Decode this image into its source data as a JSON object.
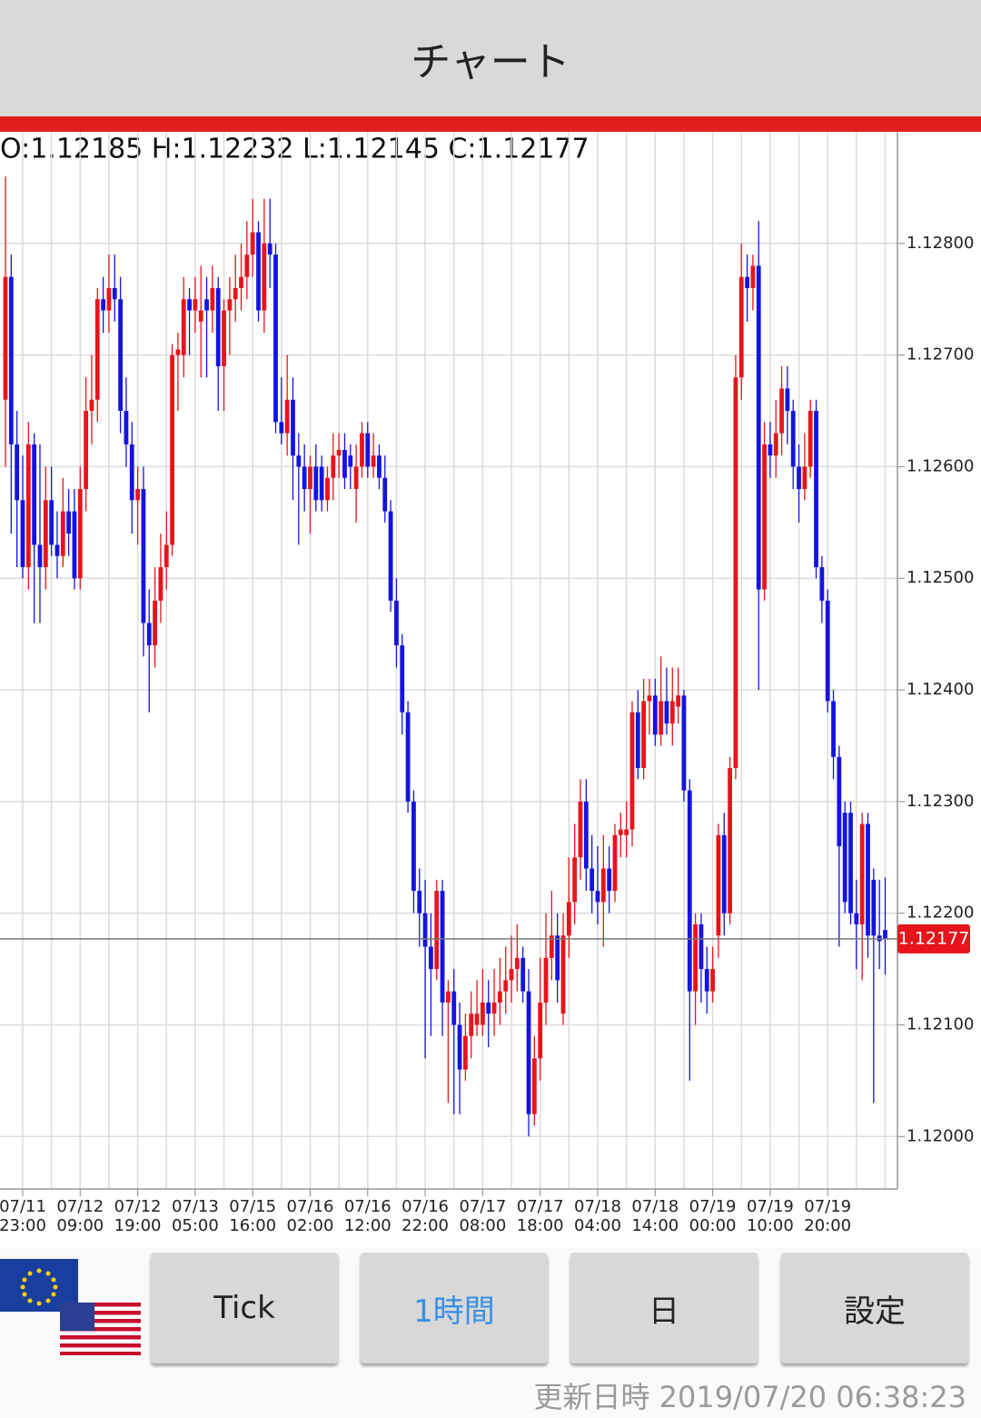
{
  "header": {
    "title": "チャート"
  },
  "chart_data": {
    "type": "candlestick",
    "ohlc_label": "O:1.12185 H:1.12232 L:1.12145 C:1.12177",
    "categories": [
      null,
      null,
      null,
      "07/11\n23:00",
      null,
      null,
      null,
      null,
      null,
      null,
      null,
      null,
      null,
      "07/12\n09:00",
      null,
      null,
      null,
      null,
      null,
      null,
      null,
      null,
      null,
      "07/12\n19:00",
      null,
      null,
      null,
      null,
      null,
      null,
      null,
      null,
      null,
      "07/13\n05:00",
      null,
      null,
      null,
      null,
      null,
      null,
      null,
      null,
      null,
      "07/15\n16:00",
      null,
      null,
      null,
      null,
      null,
      null,
      null,
      null,
      null,
      "07/16\n02:00",
      null,
      null,
      null,
      null,
      null,
      null,
      null,
      null,
      null,
      "07/16\n12:00",
      null,
      null,
      null,
      null,
      null,
      null,
      null,
      null,
      null,
      "07/16\n22:00",
      null,
      null,
      null,
      null,
      null,
      null,
      null,
      null,
      null,
      "07/17\n08:00",
      null,
      null,
      null,
      null,
      null,
      null,
      null,
      null,
      null,
      "07/17\n18:00",
      null,
      null,
      null,
      null,
      null,
      null,
      null,
      null,
      null,
      "07/18\n04:00",
      null,
      null,
      null,
      null,
      null,
      null,
      null,
      null,
      null,
      "07/18\n14:00",
      null,
      null,
      null,
      null,
      null,
      null,
      null,
      null,
      null,
      "07/19\n00:00",
      null,
      null,
      null,
      null,
      null,
      null,
      null,
      null,
      null,
      "07/19\n10:00",
      null,
      null,
      null,
      null,
      null,
      null,
      null,
      null,
      null,
      "07/19\n20:00",
      null,
      null,
      null,
      null,
      null,
      null,
      null,
      null,
      null,
      null
    ],
    "open": [
      1.1266,
      1.1277,
      1.1262,
      1.1257,
      1.1251,
      1.1262,
      1.1253,
      1.1251,
      1.1257,
      1.1253,
      1.1252,
      1.1256,
      1.1256,
      1.125,
      1.1258,
      1.1265,
      1.1266,
      1.1275,
      1.1274,
      1.1276,
      1.1275,
      1.1265,
      1.1262,
      1.1257,
      1.1258,
      1.1246,
      1.1244,
      1.1248,
      1.1251,
      1.1253,
      1.127,
      1.127,
      1.1275,
      1.1274,
      1.1273,
      1.1275,
      1.1274,
      1.1276,
      1.1269,
      1.1274,
      1.1275,
      1.1276,
      1.1277,
      1.1279,
      1.1281,
      1.1274,
      1.128,
      1.1279,
      1.1264,
      1.1263,
      1.1266,
      1.1261,
      1.126,
      1.1258,
      1.126,
      1.126,
      1.1257,
      1.1259,
      1.1261,
      1.12615,
      1.1261,
      1.1258,
      1.126,
      1.1263,
      1.126,
      1.1261,
      1.1259,
      1.1256,
      1.1248,
      1.1244,
      1.1238,
      1.123,
      1.1222,
      1.122,
      1.1217,
      1.1215,
      1.1222,
      1.1212,
      1.1213,
      1.121,
      1.1206,
      1.1209,
      1.121,
      1.121,
      1.1212,
      1.1211,
      1.1212,
      1.1213,
      1.1214,
      1.1215,
      1.1216,
      1.1213,
      1.1202,
      1.1207,
      1.1212,
      1.1216,
      1.1218,
      1.1211,
      1.1218,
      1.1221,
      1.1225,
      1.123,
      1.1224,
      1.1222,
      1.1221,
      1.1224,
      1.1222,
      1.1227,
      1.1227,
      1.12275,
      1.1238,
      1.1233,
      1.1239,
      1.12395,
      1.1236,
      1.1239,
      1.1237,
      1.12385,
      1.12395,
      1.1231,
      1.1213,
      1.1219,
      1.1215,
      1.1213,
      1.1218,
      1.1227,
      1.122,
      1.1233,
      1.1268,
      1.1277,
      1.1276,
      1.1278,
      1.1249,
      1.1262,
      1.1261,
      1.1263,
      1.1267,
      1.1265,
      1.126,
      1.1258,
      1.126,
      1.1265,
      1.1251,
      1.1248,
      1.1239,
      1.1234,
      1.1229,
      1.1229,
      1.122,
      1.1219,
      1.1228,
      1.1223,
      1.1218,
      1.12185
    ],
    "high": [
      1.1286,
      1.1279,
      1.1265,
      1.1261,
      1.1264,
      1.1263,
      1.1262,
      1.126,
      1.126,
      1.1256,
      1.1259,
      1.1258,
      1.1258,
      1.126,
      1.1268,
      1.127,
      1.1276,
      1.1277,
      1.1279,
      1.1279,
      1.1277,
      1.1268,
      1.1264,
      1.126,
      1.126,
      1.1249,
      1.1251,
      1.1254,
      1.1256,
      1.1271,
      1.1272,
      1.1277,
      1.1276,
      1.1277,
      1.1278,
      1.1277,
      1.1278,
      1.1277,
      1.1275,
      1.1277,
      1.1279,
      1.128,
      1.1282,
      1.1284,
      1.1282,
      1.1284,
      1.1284,
      1.128,
      1.1268,
      1.127,
      1.1268,
      1.1263,
      1.1262,
      1.1261,
      1.1262,
      1.1261,
      1.126,
      1.1263,
      1.1263,
      1.1263,
      1.1262,
      1.1262,
      1.1264,
      1.1264,
      1.1263,
      1.1262,
      1.1261,
      1.1257,
      1.125,
      1.1245,
      1.1239,
      1.1231,
      1.1224,
      1.1223,
      1.122,
      1.1223,
      1.1223,
      1.1214,
      1.1215,
      1.1212,
      1.1211,
      1.1213,
      1.1214,
      1.1215,
      1.1214,
      1.1215,
      1.1216,
      1.1217,
      1.1218,
      1.1219,
      1.1217,
      1.1215,
      1.1209,
      1.1216,
      1.122,
      1.1222,
      1.122,
      1.122,
      1.1225,
      1.1228,
      1.1232,
      1.1232,
      1.1227,
      1.1226,
      1.1227,
      1.1226,
      1.1228,
      1.1229,
      1.123,
      1.1239,
      1.124,
      1.1241,
      1.1241,
      1.1241,
      1.1243,
      1.1242,
      1.1242,
      1.1242,
      1.124,
      1.1232,
      1.122,
      1.122,
      1.1217,
      1.1217,
      1.1228,
      1.1229,
      1.1234,
      1.127,
      1.128,
      1.1279,
      1.1279,
      1.1282,
      1.1264,
      1.1264,
      1.1266,
      1.1269,
      1.1269,
      1.1266,
      1.1262,
      1.1263,
      1.1266,
      1.1266,
      1.1252,
      1.1249,
      1.124,
      1.1235,
      1.123,
      1.123,
      1.1223,
      1.1229,
      1.1229,
      1.1224,
      1.1223,
      1.12232
    ],
    "low": [
      1.126,
      1.1254,
      1.1251,
      1.125,
      1.1249,
      1.1246,
      1.1246,
      1.1249,
      1.1252,
      1.125,
      1.1251,
      1.1252,
      1.1249,
      1.1249,
      1.1256,
      1.1262,
      1.1264,
      1.1272,
      1.1272,
      1.1273,
      1.1263,
      1.126,
      1.1254,
      1.1253,
      1.1243,
      1.1238,
      1.1242,
      1.1246,
      1.1249,
      1.1252,
      1.1265,
      1.1268,
      1.127,
      1.1272,
      1.1268,
      1.1268,
      1.1272,
      1.1265,
      1.1265,
      1.127,
      1.1273,
      1.1274,
      1.1275,
      1.1277,
      1.1273,
      1.1272,
      1.1276,
      1.1263,
      1.1262,
      1.1261,
      1.1257,
      1.1253,
      1.1256,
      1.1254,
      1.1256,
      1.1256,
      1.1256,
      1.1257,
      1.1259,
      1.1258,
      1.1258,
      1.1255,
      1.1259,
      1.1259,
      1.1259,
      1.1258,
      1.1255,
      1.1247,
      1.1242,
      1.1236,
      1.1229,
      1.122,
      1.1217,
      1.1207,
      1.1209,
      1.1214,
      1.1209,
      1.1203,
      1.1202,
      1.1202,
      1.1205,
      1.1207,
      1.1209,
      1.1209,
      1.1208,
      1.1209,
      1.121,
      1.1211,
      1.1212,
      1.1213,
      1.1212,
      1.12,
      1.1201,
      1.1205,
      1.121,
      1.1214,
      1.1212,
      1.121,
      1.1216,
      1.1219,
      1.1223,
      1.1222,
      1.122,
      1.1219,
      1.1217,
      1.122,
      1.1221,
      1.1225,
      1.1225,
      1.1226,
      1.1232,
      1.1232,
      1.1236,
      1.1235,
      1.1235,
      1.1236,
      1.1235,
      1.1237,
      1.123,
      1.1205,
      1.121,
      1.1212,
      1.1211,
      1.1212,
      1.1216,
      1.1218,
      1.1219,
      1.1232,
      1.1266,
      1.1273,
      1.1274,
      1.124,
      1.1248,
      1.1259,
      1.1259,
      1.1261,
      1.1262,
      1.1258,
      1.1255,
      1.1257,
      1.1259,
      1.125,
      1.1246,
      1.1238,
      1.1232,
      1.1217,
      1.122,
      1.1219,
      1.1215,
      1.1214,
      1.1216,
      1.1203,
      1.1215,
      1.12145
    ],
    "close": [
      1.1277,
      1.1262,
      1.1257,
      1.1251,
      1.1262,
      1.1253,
      1.1251,
      1.1257,
      1.1253,
      1.1252,
      1.1256,
      1.1254,
      1.125,
      1.1258,
      1.1265,
      1.1266,
      1.1275,
      1.1274,
      1.1276,
      1.1275,
      1.1265,
      1.1262,
      1.1257,
      1.1258,
      1.1246,
      1.1244,
      1.1248,
      1.1251,
      1.1253,
      1.127,
      1.12705,
      1.1275,
      1.1274,
      1.1275,
      1.1274,
      1.1274,
      1.1276,
      1.1269,
      1.1274,
      1.1275,
      1.1276,
      1.1277,
      1.1279,
      1.1281,
      1.1274,
      1.128,
      1.1279,
      1.1264,
      1.1263,
      1.1266,
      1.1261,
      1.126,
      1.1258,
      1.126,
      1.1257,
      1.1257,
      1.1259,
      1.1261,
      1.12615,
      1.1259,
      1.126,
      1.126,
      1.1263,
      1.126,
      1.1261,
      1.1259,
      1.1256,
      1.1248,
      1.1244,
      1.1238,
      1.123,
      1.1222,
      1.122,
      1.1217,
      1.1215,
      1.1222,
      1.1212,
      1.1213,
      1.121,
      1.1206,
      1.1209,
      1.1211,
      1.1211,
      1.1212,
      1.1211,
      1.1212,
      1.1213,
      1.1214,
      1.1215,
      1.1216,
      1.1213,
      1.1202,
      1.1207,
      1.1212,
      1.1216,
      1.1218,
      1.1214,
      1.1218,
      1.1221,
      1.1225,
      1.123,
      1.1224,
      1.1222,
      1.1221,
      1.1224,
      1.1222,
      1.1227,
      1.12275,
      1.12275,
      1.1238,
      1.1233,
      1.1239,
      1.12395,
      1.1236,
      1.1239,
      1.1237,
      1.1239,
      1.12395,
      1.1231,
      1.1213,
      1.1219,
      1.1215,
      1.1213,
      1.1215,
      1.1227,
      1.122,
      1.1233,
      1.1268,
      1.1277,
      1.1276,
      1.1278,
      1.1249,
      1.1262,
      1.1261,
      1.1263,
      1.1267,
      1.1265,
      1.126,
      1.1258,
      1.126,
      1.1265,
      1.1251,
      1.1248,
      1.1239,
      1.1234,
      1.1226,
      1.1221,
      1.122,
      1.1219,
      1.1228,
      1.1218,
      1.1218,
      1.12175,
      1.12177
    ],
    "up_color": "#e8141c",
    "down_color": "#1414e0",
    "ylim": [
      1.11953,
      1.129
    ],
    "yticks": [
      {
        "value": 1.12,
        "label": "1.12000"
      },
      {
        "value": 1.121,
        "label": "1.12100"
      },
      {
        "value": 1.122,
        "label": "1.12200"
      },
      {
        "value": 1.123,
        "label": "1.12300"
      },
      {
        "value": 1.124,
        "label": "1.12400"
      },
      {
        "value": 1.125,
        "label": "1.12500"
      },
      {
        "value": 1.126,
        "label": "1.12600"
      },
      {
        "value": 1.127,
        "label": "1.12700"
      },
      {
        "value": 1.128,
        "label": "1.12800"
      }
    ],
    "grid": true,
    "last_price": 1.12177
  },
  "buttons": [
    "Tick",
    "1時間",
    "日",
    "設定"
  ],
  "selected_button": 1,
  "footer": {
    "updated": "更新日時 2019/07/20 06:38:23"
  }
}
